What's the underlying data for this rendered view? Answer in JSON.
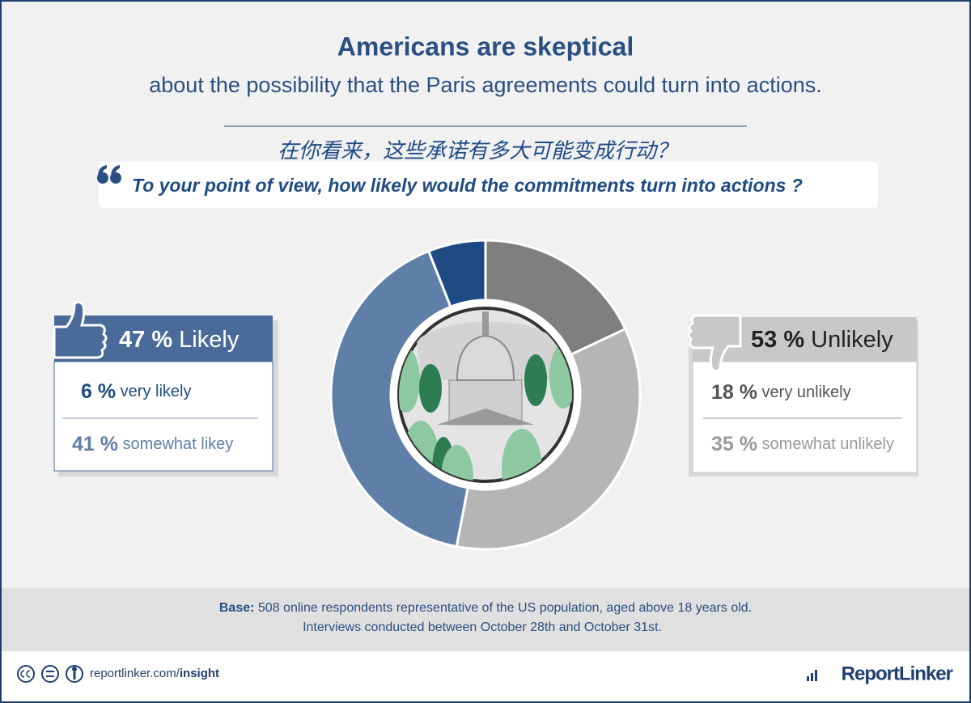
{
  "header": {
    "title": "Americans are skeptical",
    "subtitle": "about the possibility that the Paris agreements could turn into actions.",
    "question_chinese": "在你看来，这些承诺有多大可能变成行动？",
    "question": "To your point of view, how likely would the commitments turn into actions ?"
  },
  "chart_data": {
    "type": "pie",
    "categories": [
      "very unlikely",
      "somewhat unlikely",
      "somewhat likey",
      "very likely"
    ],
    "values": [
      18,
      35,
      41,
      6
    ],
    "value_labels": [
      "18 %",
      "35 %",
      "41 %",
      "6 %"
    ],
    "colors": [
      "#7f7f7f",
      "#b5b5b5",
      "#5f7fa8",
      "#1f4b84"
    ],
    "groups": [
      {
        "name": "Likely",
        "value": 47,
        "value_label": "47 %",
        "color": "#4a6b9a"
      },
      {
        "name": "Unlikely",
        "value": 53,
        "value_label": "53 %",
        "color": "#c8c8c8"
      }
    ]
  },
  "footnote": {
    "label": "Base:",
    "text": "508 online respondents representative of the US population, aged above 18 years old.",
    "text2": "Interviews conducted between October 28th and October 31st."
  },
  "footer": {
    "site": "reportlinker.com/",
    "site_bold": "insight",
    "brand": "ReportLinker"
  }
}
